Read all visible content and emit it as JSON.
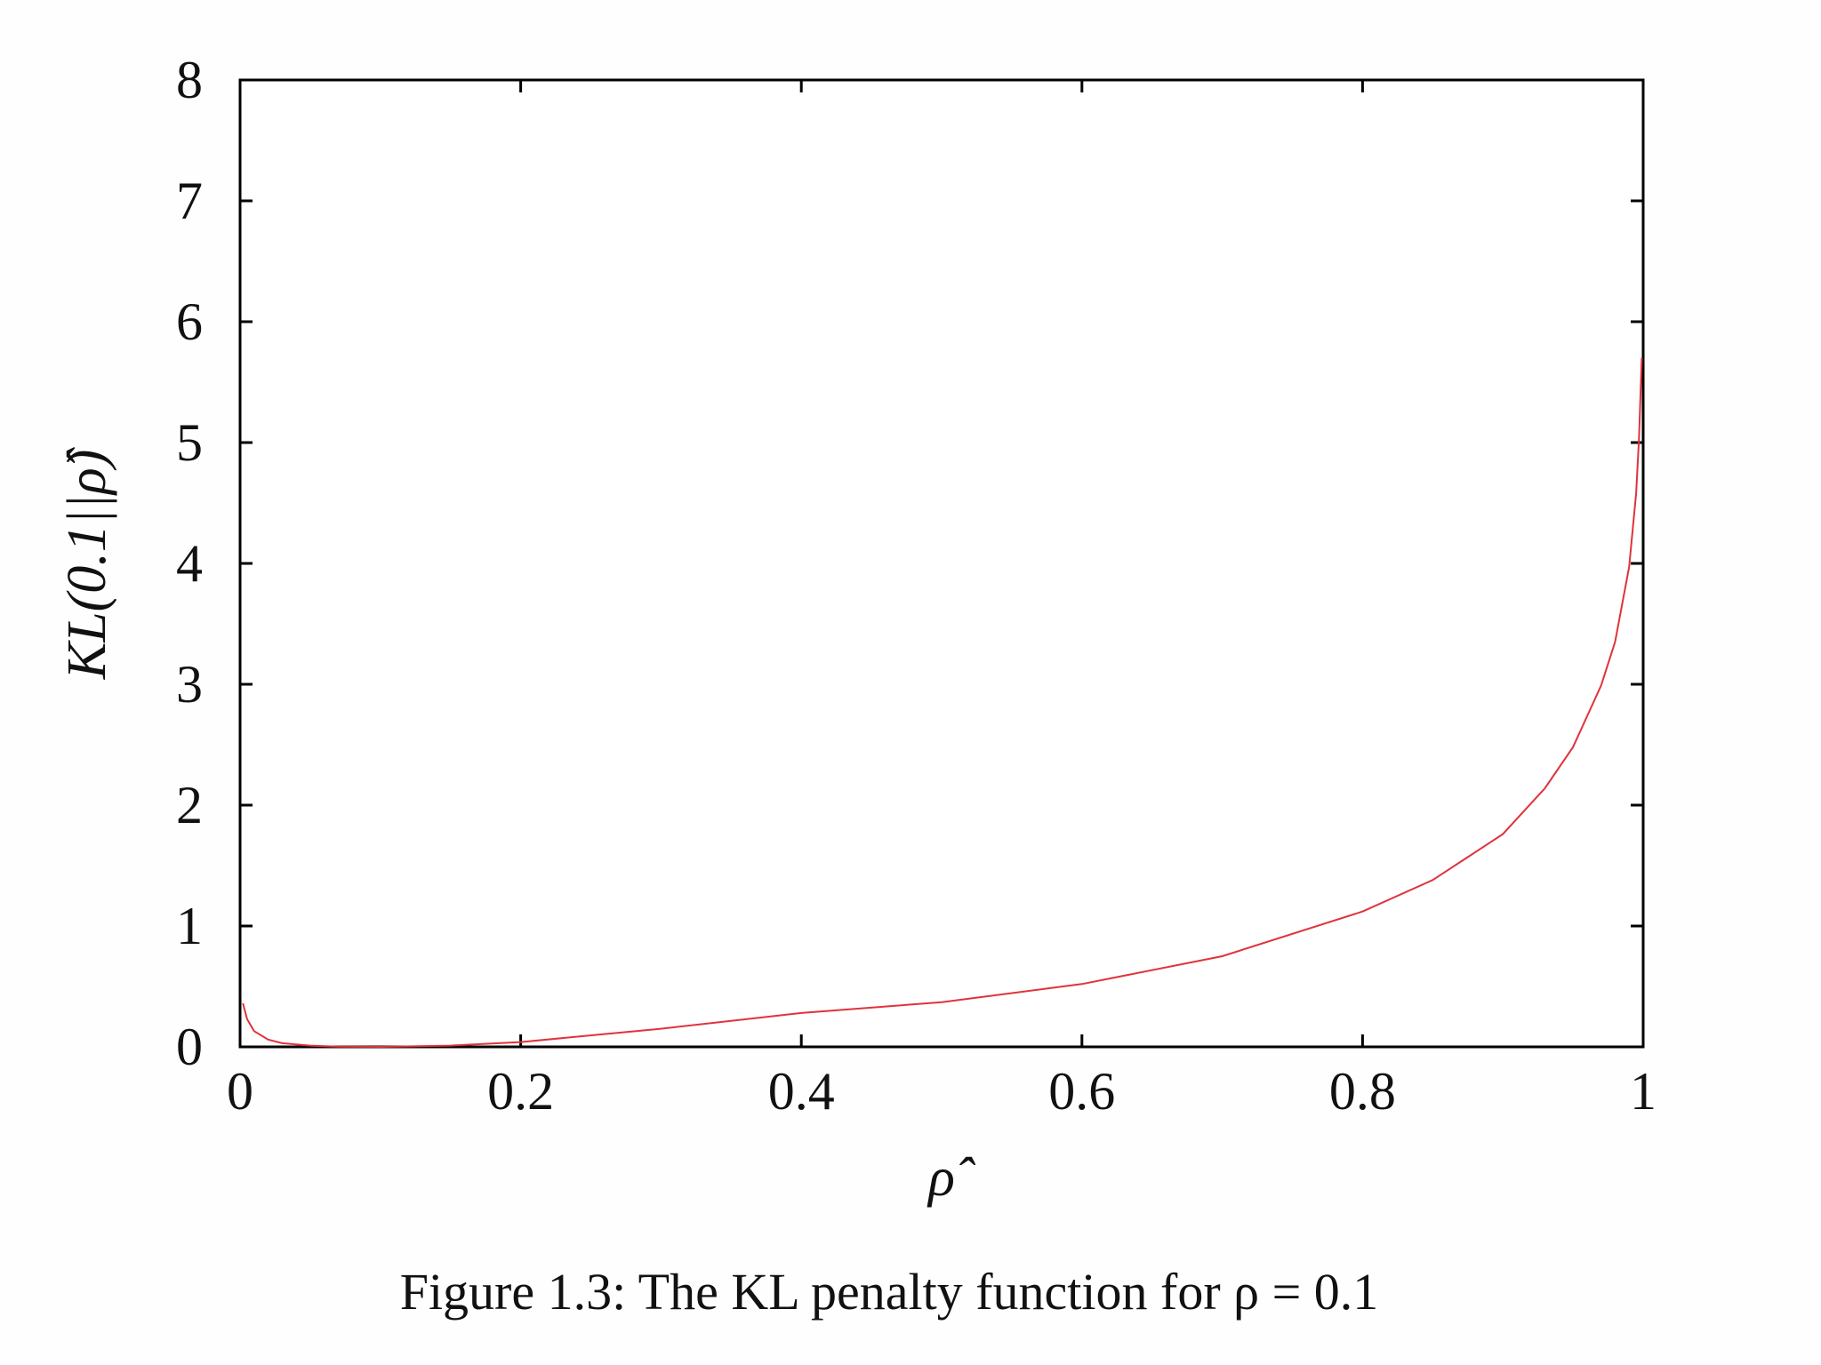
{
  "chart_data": {
    "type": "line",
    "title": "",
    "xlabel": "ρ̂",
    "ylabel": "KL(0.1||ρ̂)",
    "xlim": [
      0,
      1
    ],
    "ylim": [
      0,
      8
    ],
    "xticks": [
      0,
      0.2,
      0.4,
      0.6,
      0.8,
      1
    ],
    "xtick_labels": [
      "0",
      "0.2",
      "0.4",
      "0.6",
      "0.8",
      "1"
    ],
    "yticks": [
      0,
      1,
      2,
      3,
      4,
      5,
      6,
      7,
      8
    ],
    "ytick_labels": [
      "0",
      "1",
      "2",
      "3",
      "4",
      "5",
      "6",
      "7",
      "8"
    ],
    "grid": false,
    "legend": "none",
    "series": [
      {
        "name": "KL penalty",
        "color": "#e0323c",
        "x": [
          0.002,
          0.005,
          0.01,
          0.02,
          0.03,
          0.05,
          0.07,
          0.1,
          0.15,
          0.2,
          0.3,
          0.4,
          0.5,
          0.6,
          0.7,
          0.8,
          0.85,
          0.9,
          0.93,
          0.95,
          0.97,
          0.98,
          0.99,
          0.995,
          0.997,
          0.999
        ],
        "values": [
          0.36,
          0.23,
          0.13,
          0.06,
          0.03,
          0.01,
          0.002,
          0.0,
          0.01,
          0.04,
          0.15,
          0.28,
          0.37,
          0.52,
          0.75,
          1.12,
          1.38,
          1.76,
          2.14,
          2.48,
          2.99,
          3.35,
          3.97,
          4.58,
          5.03,
          5.7
        ]
      }
    ],
    "caption": "Figure 1.3: The KL penalty function for ρ = 0.1"
  }
}
